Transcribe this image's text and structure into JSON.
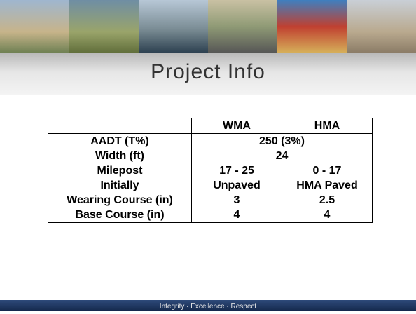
{
  "header": {
    "title": "Project Info"
  },
  "table": {
    "columns": [
      "WMA",
      "HMA"
    ],
    "rows": [
      {
        "label": "AADT  (T%)",
        "values": [
          "250 (3%)"
        ]
      },
      {
        "label": "Width (ft)",
        "values": [
          "24"
        ]
      },
      {
        "label": "Milepost",
        "values": [
          "17 - 25",
          "0 - 17"
        ]
      },
      {
        "label": "Initially",
        "values": [
          "Unpaved",
          "HMA Paved"
        ]
      },
      {
        "label": "Wearing Course (in)",
        "values": [
          "3",
          "2.5"
        ]
      },
      {
        "label": "Base Course (in)",
        "values": [
          "4",
          "4"
        ]
      }
    ]
  },
  "footer": {
    "text": "Integrity  ·  Excellence  ·  Respect"
  }
}
